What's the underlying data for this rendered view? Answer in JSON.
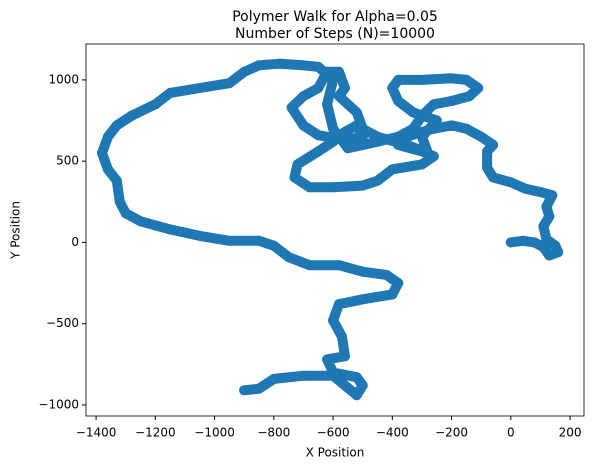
{
  "chart_data": {
    "type": "scatter",
    "title": [
      "Polymer Walk for Alpha=0.05",
      "Number of Steps (N)=10000"
    ],
    "x_label": "X Position",
    "y_label": "Y Position",
    "color": "#1f77b4",
    "xlim": [
      -1434,
      247
    ],
    "ylim": [
      -1068,
      1221
    ],
    "xticks": [
      {
        "value": -1400,
        "label": "−1400"
      },
      {
        "value": -1200,
        "label": "−1200"
      },
      {
        "value": -1000,
        "label": "−1000"
      },
      {
        "value": -800,
        "label": "−800"
      },
      {
        "value": -600,
        "label": "−600"
      },
      {
        "value": -400,
        "label": "−400"
      },
      {
        "value": -200,
        "label": "−200"
      },
      0,
      200
    ],
    "yticks": [
      {
        "value": -1000,
        "label": "−1000"
      },
      {
        "value": -500,
        "label": "−500"
      },
      0,
      500,
      1000
    ],
    "x": [
      0,
      40,
      80,
      110,
      130,
      160,
      150,
      120,
      110,
      130,
      120,
      140,
      100,
      50,
      0,
      -60,
      -80,
      -80,
      -60,
      -100,
      -150,
      -200,
      -260,
      -300,
      -350,
      -380,
      -300,
      -260,
      -300,
      -400,
      -450,
      -500,
      -600,
      -680,
      -730,
      -720,
      -650,
      -600,
      -560,
      -520,
      -500,
      -560,
      -650,
      -700,
      -740,
      -700,
      -650,
      -620,
      -580,
      -560,
      -580,
      -520,
      -500,
      -450,
      -350,
      -280,
      -300,
      -250,
      -330,
      -380,
      -400,
      -380,
      -300,
      -200,
      -150,
      -110,
      -140,
      -200,
      -260,
      -300,
      -330,
      -380,
      -450,
      -550,
      -600,
      -620,
      -600,
      -650,
      -700,
      -780,
      -850,
      -900,
      -950,
      -1050,
      -1150,
      -1200,
      -1280,
      -1330,
      -1360,
      -1380,
      -1360,
      -1330,
      -1320,
      -1300,
      -1250,
      -1150,
      -1050,
      -950,
      -850,
      -800,
      -750,
      -680,
      -580,
      -500,
      -420,
      -380,
      -400,
      -500,
      -580,
      -600,
      -570,
      -560,
      -620,
      -600,
      -520,
      -500,
      -520,
      -560,
      -600,
      -700,
      -800,
      -850,
      -900
    ],
    "values": [
      0,
      10,
      0,
      -30,
      -80,
      -60,
      -20,
      20,
      100,
      160,
      220,
      290,
      310,
      330,
      370,
      400,
      460,
      560,
      600,
      650,
      700,
      720,
      700,
      680,
      650,
      600,
      560,
      530,
      480,
      450,
      380,
      350,
      340,
      340,
      400,
      480,
      560,
      620,
      680,
      720,
      650,
      630,
      660,
      720,
      830,
      900,
      950,
      1050,
      1050,
      950,
      900,
      800,
      700,
      650,
      600,
      550,
      650,
      750,
      800,
      870,
      950,
      1000,
      1000,
      1010,
      1000,
      950,
      900,
      870,
      850,
      780,
      700,
      650,
      620,
      580,
      700,
      850,
      1000,
      1080,
      1090,
      1100,
      1090,
      1050,
      980,
      950,
      920,
      850,
      780,
      720,
      650,
      550,
      450,
      380,
      250,
      180,
      130,
      80,
      40,
      10,
      10,
      -20,
      -90,
      -140,
      -140,
      -180,
      -200,
      -250,
      -320,
      -350,
      -380,
      -480,
      -580,
      -700,
      -720,
      -800,
      -830,
      -880,
      -940,
      -880,
      -820,
      -820,
      -840,
      -900,
      -910
    ]
  }
}
